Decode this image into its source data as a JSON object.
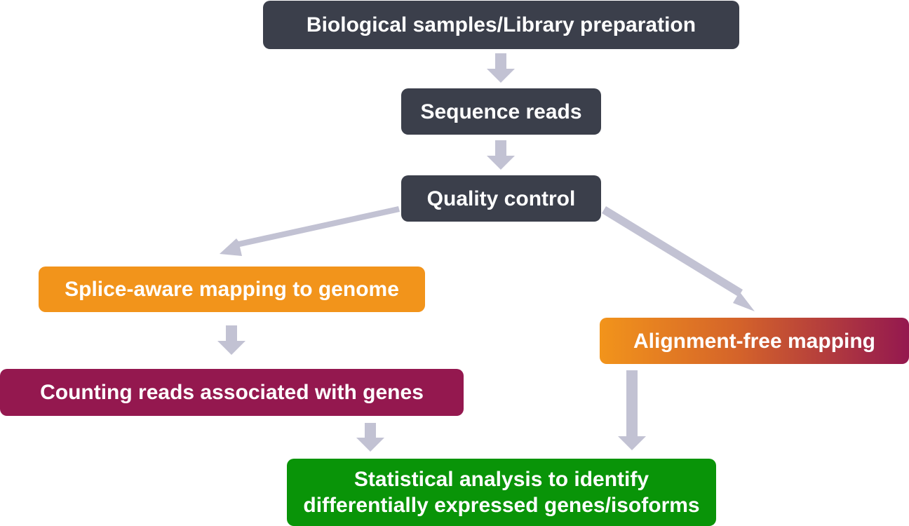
{
  "nodes": {
    "library_prep": "Biological samples/Library preparation",
    "sequence_reads": "Sequence reads",
    "quality_control": "Quality control",
    "splice_aware": "Splice-aware mapping to genome",
    "alignment_free": "Alignment-free mapping",
    "counting": "Counting reads associated with genes",
    "statistical_line1": "Statistical analysis to identify",
    "statistical_line2": "differentially expressed genes/isoforms"
  },
  "edges": [
    {
      "from": "library_prep",
      "to": "sequence_reads"
    },
    {
      "from": "sequence_reads",
      "to": "quality_control"
    },
    {
      "from": "quality_control",
      "to": "splice_aware"
    },
    {
      "from": "quality_control",
      "to": "alignment_free"
    },
    {
      "from": "splice_aware",
      "to": "counting"
    },
    {
      "from": "counting",
      "to": "statistical"
    },
    {
      "from": "alignment_free",
      "to": "statistical"
    }
  ],
  "colors": {
    "dark_box": "#3b3f4b",
    "orange_box": "#f2941b",
    "maroon_box": "#94184f",
    "green_box": "#099408",
    "arrow": "#c2c2d3"
  }
}
